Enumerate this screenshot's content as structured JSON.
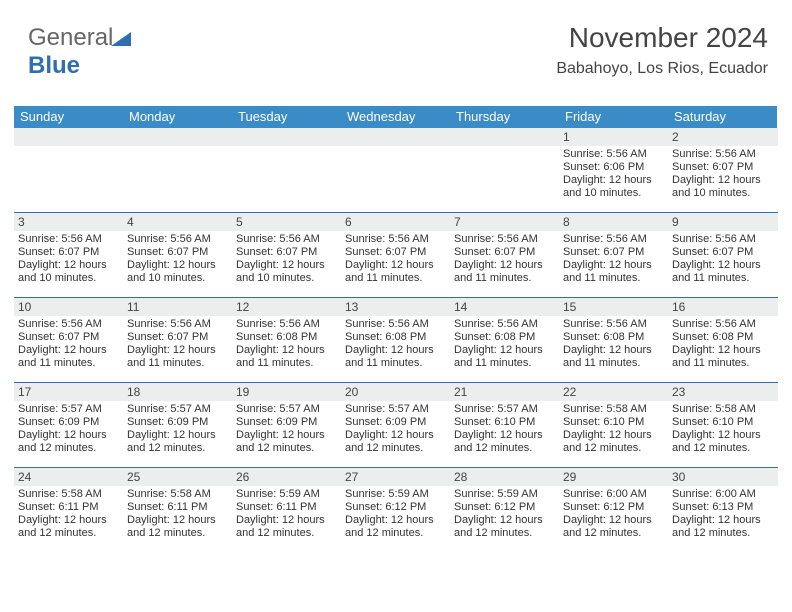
{
  "logo": {
    "text1": "General",
    "text2": "Blue"
  },
  "title": "November 2024",
  "location": "Babahoyo, Los Rios, Ecuador",
  "colors": {
    "header_bg": "#3b8bc7",
    "header_text": "#ffffff",
    "daybar_bg": "#eceded",
    "row_border": "#2f6fb0",
    "text": "#333333",
    "logo_blue": "#2f6fb0"
  },
  "weekdays": [
    "Sunday",
    "Monday",
    "Tuesday",
    "Wednesday",
    "Thursday",
    "Friday",
    "Saturday"
  ],
  "weeks": [
    {
      "nums": [
        "",
        "",
        "",
        "",
        "",
        "1",
        "2"
      ],
      "cells": [
        null,
        null,
        null,
        null,
        null,
        {
          "sunrise": "Sunrise: 5:56 AM",
          "sunset": "Sunset: 6:06 PM",
          "daylight": "Daylight: 12 hours and 10 minutes."
        },
        {
          "sunrise": "Sunrise: 5:56 AM",
          "sunset": "Sunset: 6:07 PM",
          "daylight": "Daylight: 12 hours and 10 minutes."
        }
      ]
    },
    {
      "nums": [
        "3",
        "4",
        "5",
        "6",
        "7",
        "8",
        "9"
      ],
      "cells": [
        {
          "sunrise": "Sunrise: 5:56 AM",
          "sunset": "Sunset: 6:07 PM",
          "daylight": "Daylight: 12 hours and 10 minutes."
        },
        {
          "sunrise": "Sunrise: 5:56 AM",
          "sunset": "Sunset: 6:07 PM",
          "daylight": "Daylight: 12 hours and 10 minutes."
        },
        {
          "sunrise": "Sunrise: 5:56 AM",
          "sunset": "Sunset: 6:07 PM",
          "daylight": "Daylight: 12 hours and 10 minutes."
        },
        {
          "sunrise": "Sunrise: 5:56 AM",
          "sunset": "Sunset: 6:07 PM",
          "daylight": "Daylight: 12 hours and 11 minutes."
        },
        {
          "sunrise": "Sunrise: 5:56 AM",
          "sunset": "Sunset: 6:07 PM",
          "daylight": "Daylight: 12 hours and 11 minutes."
        },
        {
          "sunrise": "Sunrise: 5:56 AM",
          "sunset": "Sunset: 6:07 PM",
          "daylight": "Daylight: 12 hours and 11 minutes."
        },
        {
          "sunrise": "Sunrise: 5:56 AM",
          "sunset": "Sunset: 6:07 PM",
          "daylight": "Daylight: 12 hours and 11 minutes."
        }
      ]
    },
    {
      "nums": [
        "10",
        "11",
        "12",
        "13",
        "14",
        "15",
        "16"
      ],
      "cells": [
        {
          "sunrise": "Sunrise: 5:56 AM",
          "sunset": "Sunset: 6:07 PM",
          "daylight": "Daylight: 12 hours and 11 minutes."
        },
        {
          "sunrise": "Sunrise: 5:56 AM",
          "sunset": "Sunset: 6:07 PM",
          "daylight": "Daylight: 12 hours and 11 minutes."
        },
        {
          "sunrise": "Sunrise: 5:56 AM",
          "sunset": "Sunset: 6:08 PM",
          "daylight": "Daylight: 12 hours and 11 minutes."
        },
        {
          "sunrise": "Sunrise: 5:56 AM",
          "sunset": "Sunset: 6:08 PM",
          "daylight": "Daylight: 12 hours and 11 minutes."
        },
        {
          "sunrise": "Sunrise: 5:56 AM",
          "sunset": "Sunset: 6:08 PM",
          "daylight": "Daylight: 12 hours and 11 minutes."
        },
        {
          "sunrise": "Sunrise: 5:56 AM",
          "sunset": "Sunset: 6:08 PM",
          "daylight": "Daylight: 12 hours and 11 minutes."
        },
        {
          "sunrise": "Sunrise: 5:56 AM",
          "sunset": "Sunset: 6:08 PM",
          "daylight": "Daylight: 12 hours and 11 minutes."
        }
      ]
    },
    {
      "nums": [
        "17",
        "18",
        "19",
        "20",
        "21",
        "22",
        "23"
      ],
      "cells": [
        {
          "sunrise": "Sunrise: 5:57 AM",
          "sunset": "Sunset: 6:09 PM",
          "daylight": "Daylight: 12 hours and 12 minutes."
        },
        {
          "sunrise": "Sunrise: 5:57 AM",
          "sunset": "Sunset: 6:09 PM",
          "daylight": "Daylight: 12 hours and 12 minutes."
        },
        {
          "sunrise": "Sunrise: 5:57 AM",
          "sunset": "Sunset: 6:09 PM",
          "daylight": "Daylight: 12 hours and 12 minutes."
        },
        {
          "sunrise": "Sunrise: 5:57 AM",
          "sunset": "Sunset: 6:09 PM",
          "daylight": "Daylight: 12 hours and 12 minutes."
        },
        {
          "sunrise": "Sunrise: 5:57 AM",
          "sunset": "Sunset: 6:10 PM",
          "daylight": "Daylight: 12 hours and 12 minutes."
        },
        {
          "sunrise": "Sunrise: 5:58 AM",
          "sunset": "Sunset: 6:10 PM",
          "daylight": "Daylight: 12 hours and 12 minutes."
        },
        {
          "sunrise": "Sunrise: 5:58 AM",
          "sunset": "Sunset: 6:10 PM",
          "daylight": "Daylight: 12 hours and 12 minutes."
        }
      ]
    },
    {
      "nums": [
        "24",
        "25",
        "26",
        "27",
        "28",
        "29",
        "30"
      ],
      "cells": [
        {
          "sunrise": "Sunrise: 5:58 AM",
          "sunset": "Sunset: 6:11 PM",
          "daylight": "Daylight: 12 hours and 12 minutes."
        },
        {
          "sunrise": "Sunrise: 5:58 AM",
          "sunset": "Sunset: 6:11 PM",
          "daylight": "Daylight: 12 hours and 12 minutes."
        },
        {
          "sunrise": "Sunrise: 5:59 AM",
          "sunset": "Sunset: 6:11 PM",
          "daylight": "Daylight: 12 hours and 12 minutes."
        },
        {
          "sunrise": "Sunrise: 5:59 AM",
          "sunset": "Sunset: 6:12 PM",
          "daylight": "Daylight: 12 hours and 12 minutes."
        },
        {
          "sunrise": "Sunrise: 5:59 AM",
          "sunset": "Sunset: 6:12 PM",
          "daylight": "Daylight: 12 hours and 12 minutes."
        },
        {
          "sunrise": "Sunrise: 6:00 AM",
          "sunset": "Sunset: 6:12 PM",
          "daylight": "Daylight: 12 hours and 12 minutes."
        },
        {
          "sunrise": "Sunrise: 6:00 AM",
          "sunset": "Sunset: 6:13 PM",
          "daylight": "Daylight: 12 hours and 12 minutes."
        }
      ]
    }
  ]
}
